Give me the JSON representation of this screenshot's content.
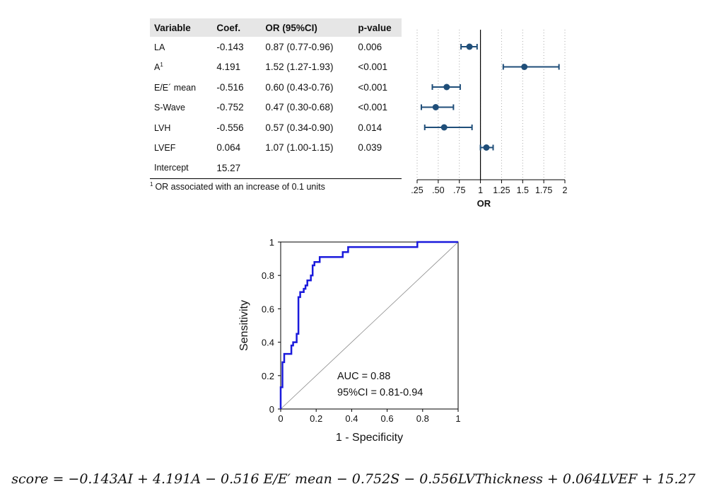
{
  "table": {
    "headers": [
      "Variable",
      "Coef.",
      "OR (95%CI)",
      "p-value"
    ],
    "rows": [
      {
        "var": "LA",
        "sup": "",
        "coef": "-0.143",
        "or": "0.87 (0.77-0.96)",
        "p": "0.006"
      },
      {
        "var": "A",
        "sup": "1",
        "coef": "4.191",
        "or": "1.52 (1.27-1.93)",
        "p": "<0.001"
      },
      {
        "var": "E/E´ mean",
        "sup": "",
        "coef": "-0.516",
        "or": "0.60 (0.43-0.76)",
        "p": "<0.001"
      },
      {
        "var": "S-Wave",
        "sup": "",
        "coef": "-0.752",
        "or": "0.47 (0.30-0.68)",
        "p": "<0.001"
      },
      {
        "var": "LVH",
        "sup": "",
        "coef": "-0.556",
        "or": "0.57 (0.34-0.90)",
        "p": "0.014"
      },
      {
        "var": "LVEF",
        "sup": "",
        "coef": "0.064",
        "or": "1.07 (1.00-1.15)",
        "p": "0.039"
      }
    ],
    "intercept": {
      "var": "Intercept",
      "coef": "15.27"
    },
    "footnote_mark": "1",
    "footnote": "OR associated with an increase of 0.1 units"
  },
  "chart_data": [
    {
      "type": "scatter",
      "subtype": "forest",
      "xlabel": "OR",
      "xlim": [
        0.25,
        2
      ],
      "xticks": [
        0.25,
        0.5,
        0.75,
        1,
        1.25,
        1.5,
        1.75,
        2
      ],
      "xtick_labels": [
        ".25",
        ".50",
        ".75",
        "1",
        "1.25",
        "1.5",
        "1.75",
        "2"
      ],
      "reference_line": 1,
      "grid": "vertical-dotted",
      "categories": [
        "LA",
        "A",
        "E/E´ mean",
        "S-Wave",
        "LVH",
        "LVEF"
      ],
      "estimates": [
        0.87,
        1.52,
        0.6,
        0.47,
        0.57,
        1.07
      ],
      "lower": [
        0.77,
        1.27,
        0.43,
        0.3,
        0.34,
        1.0
      ],
      "upper": [
        0.96,
        1.93,
        0.76,
        0.68,
        0.9,
        1.15
      ],
      "color": "#1f4e79"
    },
    {
      "type": "line",
      "subtype": "roc",
      "xlabel": "1 - Specificity",
      "ylabel": "Sensitivity",
      "xlim": [
        0,
        1
      ],
      "ylim": [
        0,
        1
      ],
      "ticks": [
        0,
        0.2,
        0.4,
        0.6,
        0.8,
        1
      ],
      "tick_labels": [
        "0",
        "0.2",
        "0.4",
        "0.6",
        "0.8",
        "1"
      ],
      "annotations": [
        "AUC = 0.88",
        "95%CI = 0.81-0.94"
      ],
      "color": "#1a1adc",
      "diagonal": true,
      "x": [
        0,
        0,
        0.01,
        0.01,
        0.02,
        0.02,
        0.06,
        0.06,
        0.07,
        0.07,
        0.09,
        0.09,
        0.1,
        0.1,
        0.11,
        0.11,
        0.13,
        0.13,
        0.14,
        0.14,
        0.15,
        0.15,
        0.17,
        0.17,
        0.18,
        0.18,
        0.19,
        0.19,
        0.22,
        0.22,
        0.35,
        0.35,
        0.38,
        0.38,
        0.77,
        0.77,
        1
      ],
      "y": [
        0,
        0.13,
        0.13,
        0.28,
        0.28,
        0.33,
        0.33,
        0.38,
        0.38,
        0.4,
        0.4,
        0.45,
        0.45,
        0.67,
        0.67,
        0.7,
        0.7,
        0.72,
        0.72,
        0.74,
        0.74,
        0.77,
        0.77,
        0.8,
        0.8,
        0.86,
        0.86,
        0.88,
        0.88,
        0.91,
        0.91,
        0.94,
        0.94,
        0.97,
        0.97,
        1,
        1
      ]
    }
  ],
  "formula": "score = −0.143AI + 4.191A − 0.516 E/E′ mean − 0.752S − 0.556LVThickness + 0.064LVEF + 15.27"
}
